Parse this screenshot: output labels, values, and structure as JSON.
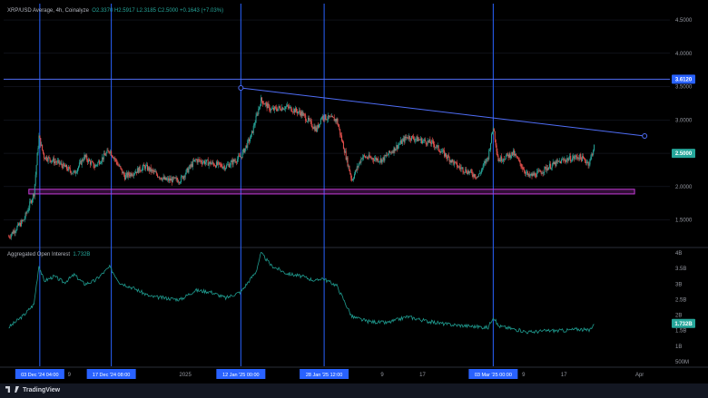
{
  "header": {
    "symbol": "XRP/USD Average, 4h, Coinalyze",
    "ohlc": "O2.3370  H2.5917  L2.3185  C2.5000  +0.1643 (+7.03%)"
  },
  "oi_pane": {
    "title": "Aggregated Open Interest",
    "value": "1.732B"
  },
  "price_labels": {
    "resistance": "3.6120",
    "current": "2.5000",
    "oi_current": "1.732B"
  },
  "footer": {
    "brand": "TradingView"
  },
  "colors": {
    "up": "#26a69a",
    "down": "#ef5350",
    "trendline": "#4f6df5",
    "support_zone": "#c43bd6",
    "grid": "#1e2230",
    "axis_text": "#9598a1",
    "marker_bg": "#2962ff",
    "oi_line": "#1f9b8f"
  },
  "chart_data": [
    {
      "type": "candlestick",
      "title": "XRP/USD Average, 4h, Coinalyze",
      "ylabel": "",
      "ylim": [
        1.1,
        4.8
      ],
      "y_ticks": [
        "4.5000",
        "4.0000",
        "3.5000",
        "3.0000",
        "2.5000",
        "2.0000",
        "1.5000"
      ],
      "y_tick_values": [
        4.5,
        4.0,
        3.5,
        3.0,
        2.5,
        2.0,
        1.5
      ],
      "x_ticks": [
        "9",
        "2025",
        "9",
        "17",
        "9",
        "17",
        "Apr"
      ],
      "date_markers": [
        "03 Dec '24  04:00",
        "17 Dec '24  08:00",
        "12 Jan '25  00:00",
        "28 Jan '25  12:00",
        "03 Mar '25  00:00"
      ],
      "close_path": [
        [
          "Nov 27",
          1.25
        ],
        [
          "Nov 30",
          1.5
        ],
        [
          "Dec 2",
          1.9
        ],
        [
          "Dec 3",
          2.75
        ],
        [
          "Dec 4",
          2.45
        ],
        [
          "Dec 7",
          2.35
        ],
        [
          "Dec 10",
          2.2
        ],
        [
          "Dec 12",
          2.45
        ],
        [
          "Dec 14",
          2.3
        ],
        [
          "Dec 17",
          2.55
        ],
        [
          "Dec 20",
          2.15
        ],
        [
          "Dec 24",
          2.3
        ],
        [
          "Dec 28",
          2.1
        ],
        [
          "Dec 31",
          2.1
        ],
        [
          "Jan 3",
          2.4
        ],
        [
          "Jan 6",
          2.35
        ],
        [
          "Jan 9",
          2.3
        ],
        [
          "Jan 12",
          2.45
        ],
        [
          "Jan 14",
          2.75
        ],
        [
          "Jan 16",
          3.3
        ],
        [
          "Jan 18",
          3.15
        ],
        [
          "Jan 21",
          3.2
        ],
        [
          "Jan 24",
          3.1
        ],
        [
          "Jan 27",
          2.85
        ],
        [
          "Jan 28",
          3.05
        ],
        [
          "Jan 31",
          3.0
        ],
        [
          "Feb 3",
          2.1
        ],
        [
          "Feb 5",
          2.45
        ],
        [
          "Feb 9",
          2.4
        ],
        [
          "Feb 14",
          2.75
        ],
        [
          "Feb 19",
          2.65
        ],
        [
          "Feb 24",
          2.3
        ],
        [
          "Feb 28",
          2.15
        ],
        [
          "Mar 2",
          2.45
        ],
        [
          "Mar 3",
          2.9
        ],
        [
          "Mar 4",
          2.4
        ],
        [
          "Mar 7",
          2.5
        ],
        [
          "Mar 10",
          2.15
        ],
        [
          "Mar 12",
          2.2
        ],
        [
          "Mar 14",
          2.3
        ],
        [
          "Mar 17",
          2.4
        ],
        [
          "Mar 20",
          2.45
        ],
        [
          "Mar 22",
          2.35
        ],
        [
          "Mar 23",
          2.6
        ]
      ],
      "annotations": {
        "resistance_level": 3.612,
        "trendline": {
          "from": [
            "Jan 12",
            3.48
          ],
          "to": [
            "Apr 2",
            2.76
          ]
        },
        "support_zone": {
          "from_date": "Dec 1",
          "to_date": "Mar 31",
          "y": [
            1.89,
            1.96
          ]
        }
      }
    },
    {
      "type": "line",
      "title": "Aggregated Open Interest",
      "ylim": [
        0.35,
        4.15
      ],
      "y_ticks": [
        "4B",
        "3.5B",
        "3B",
        "2.5B",
        "2B",
        "1.5B",
        "1B",
        "500M"
      ],
      "y_tick_values": [
        4,
        3.5,
        3,
        2.5,
        2,
        1.5,
        1,
        0.5
      ],
      "unit": "B",
      "x": [
        "Nov 27",
        "Nov 30",
        "Dec 2",
        "Dec 3",
        "Dec 4",
        "Dec 6",
        "Dec 8",
        "Dec 10",
        "Dec 12",
        "Dec 14",
        "Dec 17",
        "Dec 19",
        "Dec 22",
        "Dec 25",
        "Dec 28",
        "Dec 31",
        "Jan 3",
        "Jan 6",
        "Jan 9",
        "Jan 12",
        "Jan 15",
        "Jan 16",
        "Jan 18",
        "Jan 21",
        "Jan 24",
        "Jan 27",
        "Jan 28",
        "Jan 31",
        "Feb 3",
        "Feb 6",
        "Feb 10",
        "Feb 14",
        "Feb 18",
        "Feb 22",
        "Feb 26",
        "Mar 2",
        "Mar 3",
        "Mar 4",
        "Mar 7",
        "Mar 10",
        "Mar 14",
        "Mar 17",
        "Mar 20",
        "Mar 22",
        "Mar 23"
      ],
      "values": [
        1.6,
        2.0,
        2.35,
        3.6,
        3.1,
        3.25,
        3.05,
        3.3,
        3.0,
        3.1,
        3.55,
        3.05,
        2.85,
        2.6,
        2.55,
        2.5,
        2.8,
        2.75,
        2.55,
        2.75,
        3.4,
        4.0,
        3.6,
        3.35,
        3.25,
        3.1,
        3.2,
        2.95,
        1.95,
        1.8,
        1.75,
        1.95,
        1.8,
        1.7,
        1.65,
        1.6,
        1.95,
        1.65,
        1.55,
        1.45,
        1.5,
        1.5,
        1.55,
        1.5,
        1.73
      ]
    }
  ]
}
